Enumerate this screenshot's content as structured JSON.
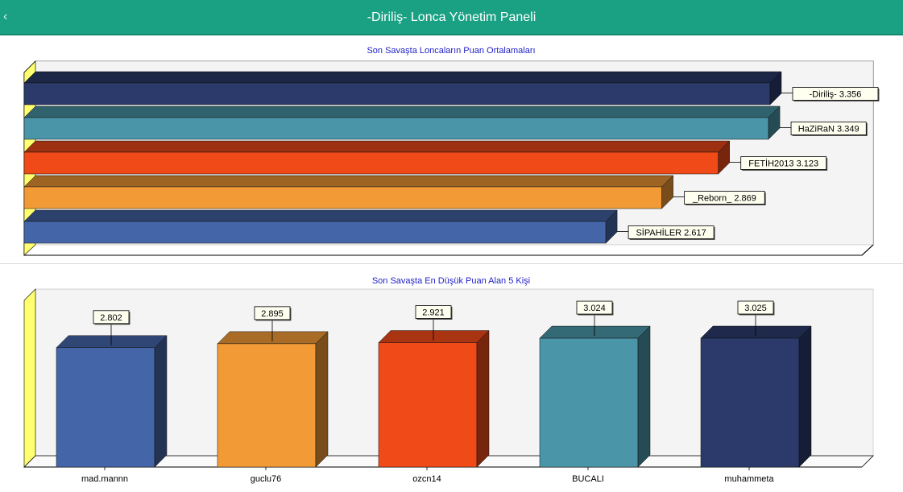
{
  "header": {
    "back_icon": "chevron-left-icon",
    "title": "-Diriliş- Lonca Yönetim Paneli"
  },
  "chart_data": [
    {
      "type": "bar",
      "orientation": "horizontal",
      "title": "Son Savaşta Loncaların Puan Ortalamaları",
      "categories": [
        "-Diriliş-",
        "HaZiRaN",
        "FETİH2013",
        "_Reborn_",
        "SİPAHİLER"
      ],
      "values": [
        3.356,
        3.349,
        3.123,
        2.869,
        2.617
      ],
      "value_labels": [
        "-Diriliş- 3.356",
        "HaZiRaN 3.349",
        "FETİH2013 3.123",
        "_Reborn_ 2.869",
        "SİPAHİLER 2.617"
      ],
      "colors": [
        "#2b3a6b",
        "#4a96a8",
        "#f04a19",
        "#f29a36",
        "#4466a8"
      ],
      "grid": false
    },
    {
      "type": "bar",
      "orientation": "vertical",
      "title": "Son Savaşta En Düşük Puan Alan 5 Kişi",
      "categories": [
        "mad.mannn",
        "guclu76",
        "ozcn14",
        "BUCALI",
        "muhammeta"
      ],
      "values": [
        2.802,
        2.895,
        2.921,
        3.024,
        3.025
      ],
      "value_labels": [
        "2.802",
        "2.895",
        "2.921",
        "3.024",
        "3.025"
      ],
      "colors": [
        "#4466a8",
        "#f29a36",
        "#f04a19",
        "#4a96a8",
        "#2b3a6b"
      ],
      "grid": false
    }
  ]
}
